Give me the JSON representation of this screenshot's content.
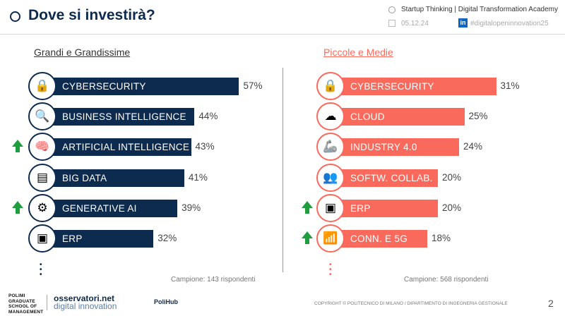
{
  "header": {
    "title": "Dove si investirà?",
    "academy": "Startup Thinking | Digital Transformation Academy",
    "date": "05.12.24",
    "hashtag": "#digitalopeninnovation25"
  },
  "chart_data": [
    {
      "type": "bar",
      "title": "Grandi e Grandissime",
      "color": "#0d2b4e",
      "unit": "%",
      "categories": [
        "CYBERSECURITY",
        "BUSINESS INTELLIGENCE",
        "ARTIFICIAL INTELLIGENCE",
        "BIG DATA",
        "GENERATIVE AI",
        "ERP"
      ],
      "values": [
        57,
        44,
        43,
        41,
        39,
        32
      ],
      "trend_up": [
        false,
        false,
        true,
        false,
        true,
        false
      ],
      "icons": [
        "lock-icon",
        "magnifier-icon",
        "brain-icon",
        "server-icon",
        "ai-chip-icon",
        "tablet-icon"
      ],
      "note": "Campione: 143 rispondenti"
    },
    {
      "type": "bar",
      "title": "Piccole e Medie",
      "color": "#f96a5c",
      "unit": "%",
      "categories": [
        "CYBERSECURITY",
        "CLOUD",
        "INDUSTRY 4.0",
        "SOFTW. COLLAB.",
        "ERP",
        "CONN. E 5G"
      ],
      "values": [
        31,
        25,
        24,
        20,
        20,
        18
      ],
      "trend_up": [
        false,
        false,
        false,
        false,
        true,
        true
      ],
      "icons": [
        "lock-icon",
        "cloud-icon",
        "robot-arm-icon",
        "team-icon",
        "tablet-icon",
        "router-icon"
      ],
      "note": "Campione: 568 rispondenti"
    }
  ],
  "footer": {
    "logo1": "POLIMI GRADUATE SCHOOL OF MANAGEMENT",
    "logo2a": "osservatori.net",
    "logo2b": "digital innovation",
    "logo3": "PoliHub",
    "copyright": "COPYRIGHT © POLITECNICO DI MILANO / DIPARTIMENTO DI INGEGNERIA GESTIONALE",
    "page": "2"
  }
}
